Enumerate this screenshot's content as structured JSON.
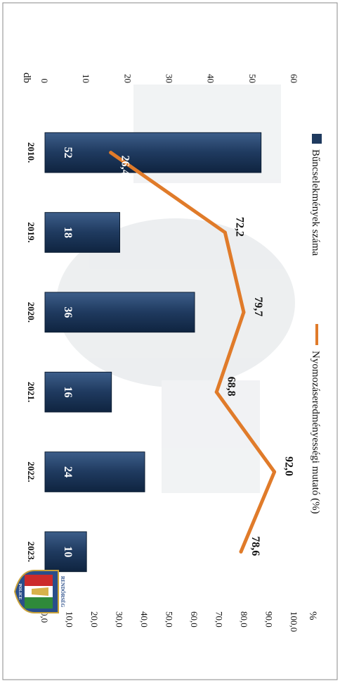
{
  "chart_data": {
    "type": "bar+line",
    "categories": [
      "2010.",
      "2019.",
      "2020.",
      "2021.",
      "2022.",
      "2023."
    ],
    "series": [
      {
        "name": "Bűncselekmények száma",
        "type": "bar",
        "axis": "left",
        "values": [
          52,
          18,
          36,
          16,
          24,
          10
        ],
        "labels": [
          "52",
          "18",
          "36",
          "16",
          "24",
          "10"
        ],
        "color": "#1f3a5f"
      },
      {
        "name": "Nyomozáseredményességi mutató (%)",
        "type": "line",
        "axis": "right",
        "values": [
          26.4,
          72.2,
          79.7,
          68.8,
          92.0,
          78.6
        ],
        "labels": [
          "26,4",
          "72,2",
          "79,7",
          "68,8",
          "92,0",
          "78,6"
        ],
        "color": "#e07b2a"
      }
    ],
    "left_axis": {
      "unit": "db",
      "min": 0,
      "max": 60,
      "ticks": [
        0,
        10,
        20,
        30,
        40,
        50,
        60
      ],
      "tick_labels": [
        "0",
        "10",
        "20",
        "30",
        "40",
        "50",
        "60"
      ]
    },
    "right_axis": {
      "unit": "%",
      "min": 0,
      "max": 100,
      "ticks": [
        0,
        10,
        20,
        30,
        40,
        50,
        60,
        70,
        80,
        90,
        100
      ],
      "tick_labels": [
        "0,0",
        "10,0",
        "20,0",
        "30,0",
        "40,0",
        "50,0",
        "60,0",
        "70,0",
        "80,0",
        "90,0",
        "100,0"
      ]
    },
    "legend_position": "top",
    "grid": false
  },
  "logo": {
    "top_text": "RENDŐRSÉG",
    "bottom_text": "POLICE"
  },
  "colors": {
    "bar": "#1f3a5f",
    "line": "#e07b2a",
    "text": "#111111",
    "frame": "#777777"
  }
}
